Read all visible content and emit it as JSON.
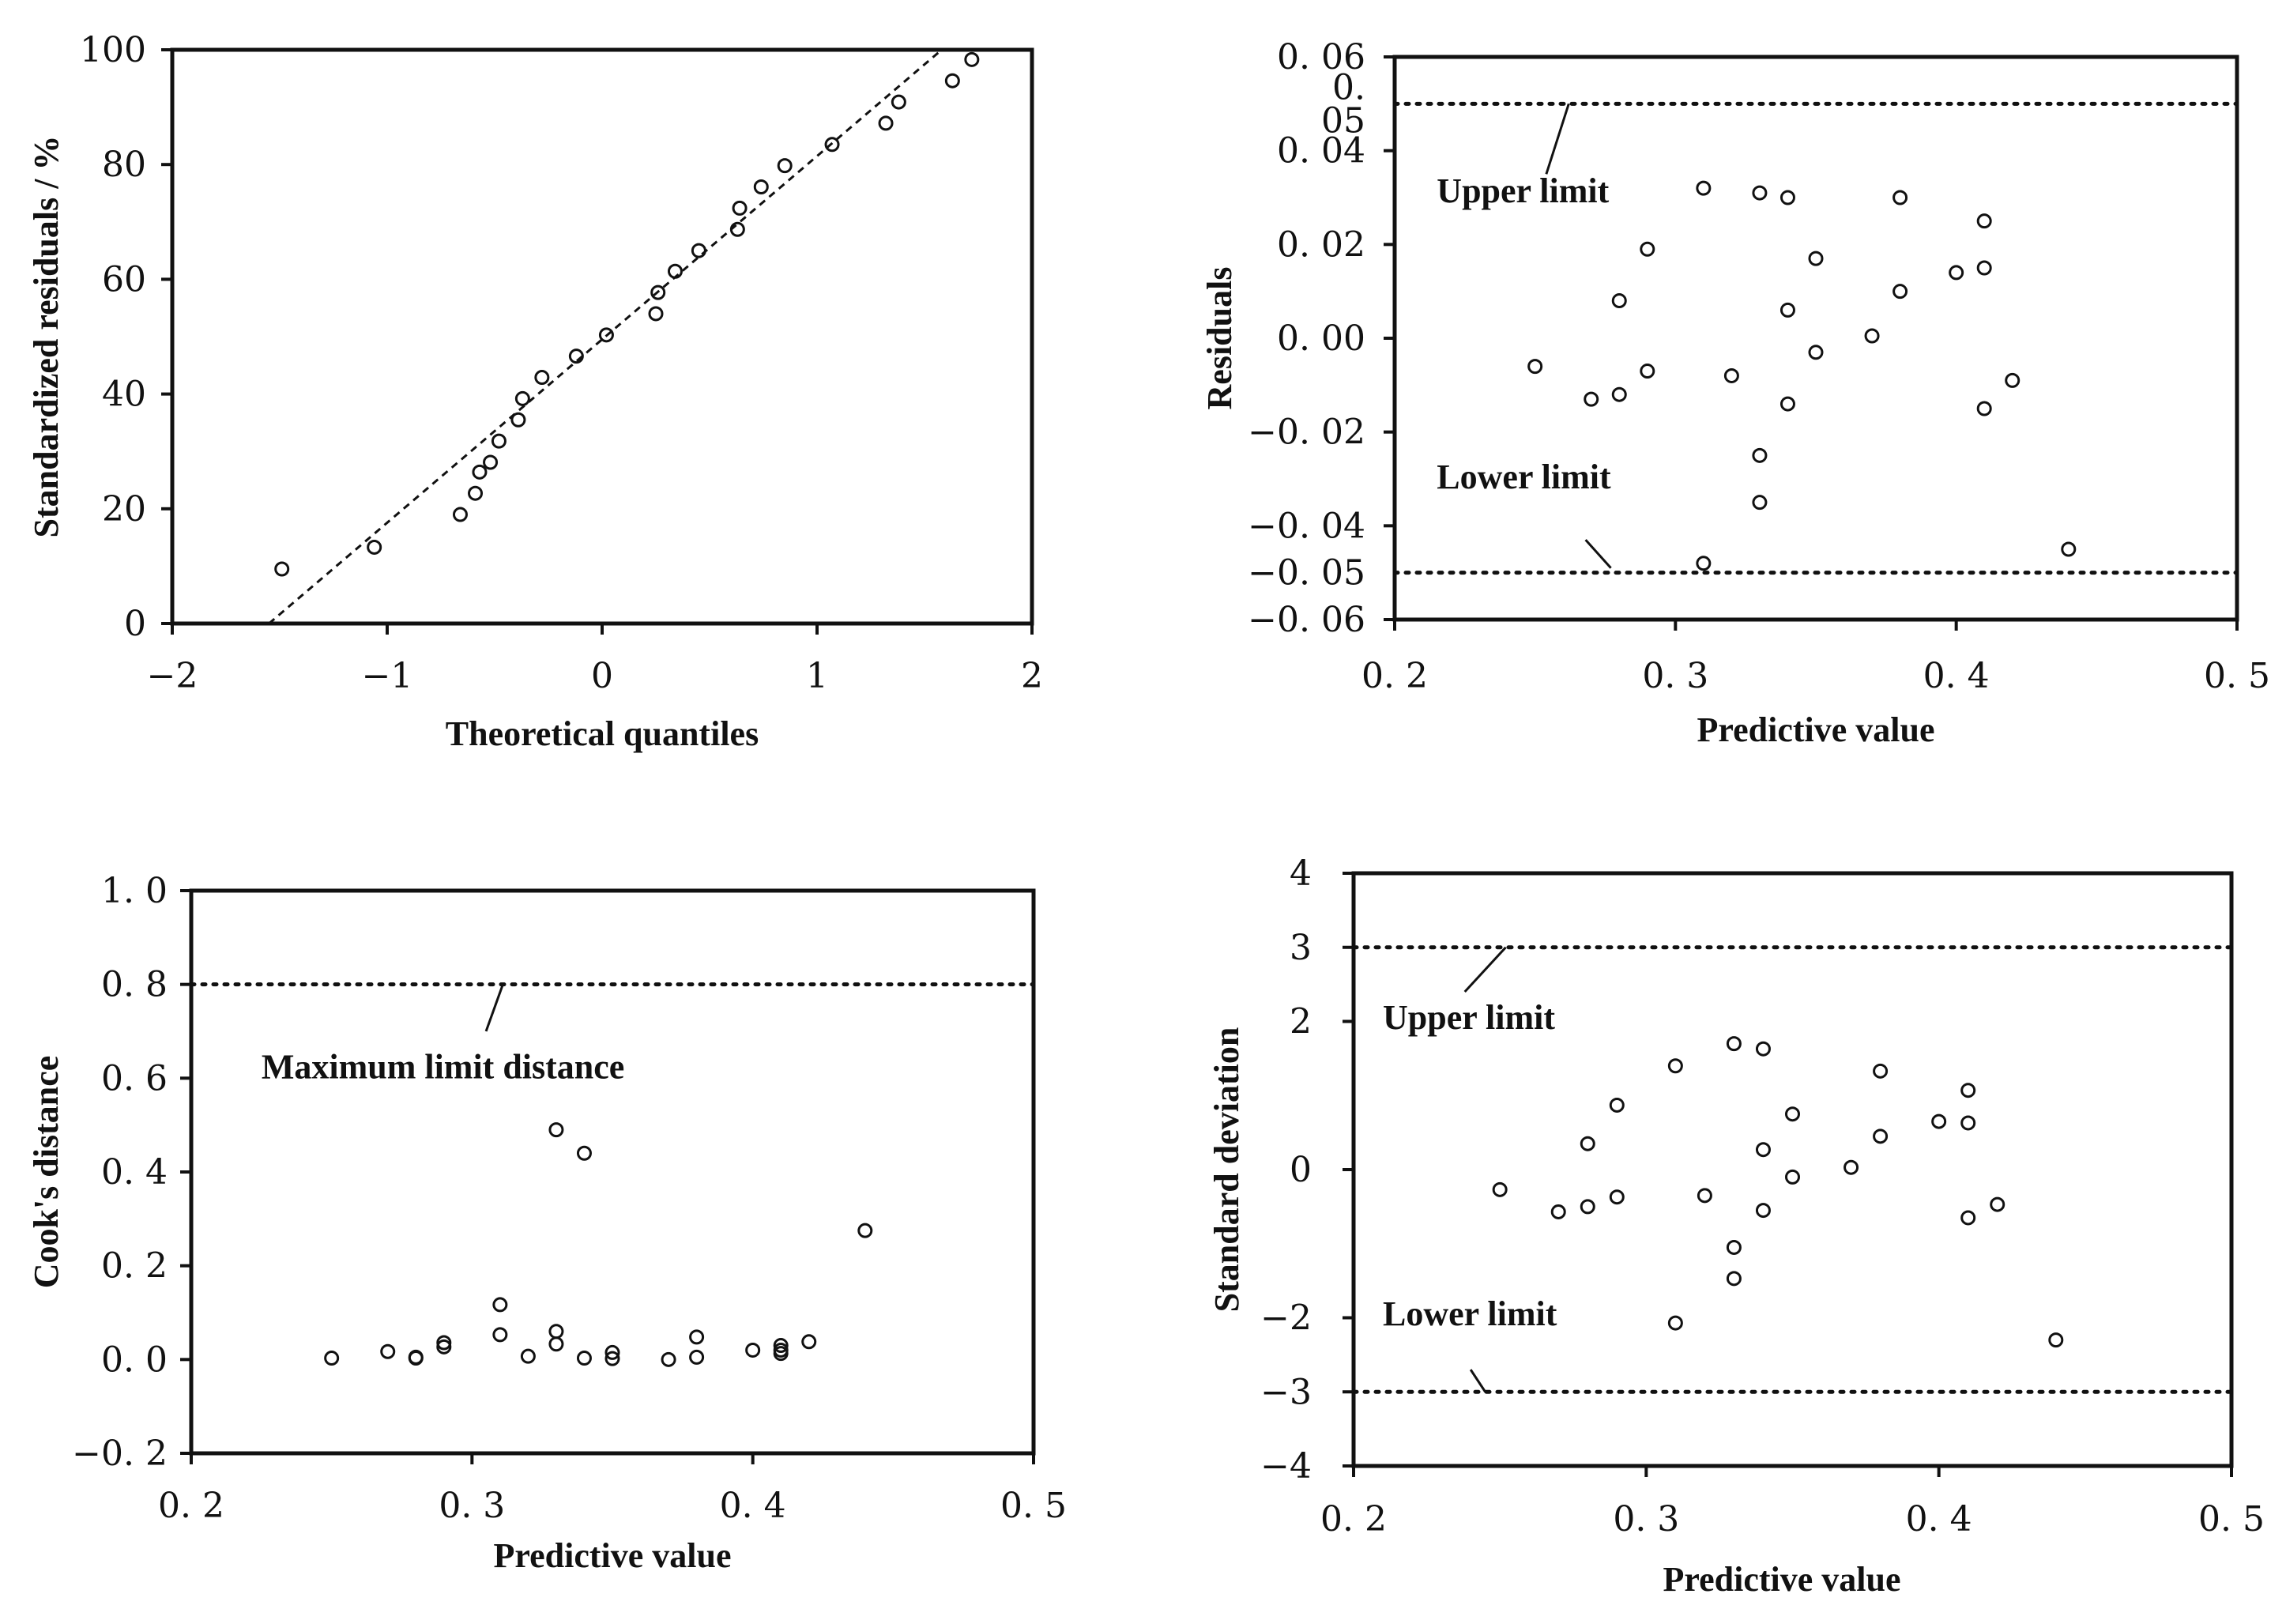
{
  "chart_data": [
    {
      "id": "qq",
      "type": "scatter",
      "xlabel": "Theoretical quantiles",
      "ylabel": "Standardized residuals / %",
      "xlim": [
        -2,
        2
      ],
      "ylim": [
        0,
        100
      ],
      "xticks": [
        -2,
        -1,
        0,
        1,
        2
      ],
      "xtick_labels": [
        "−2",
        "−1",
        "0",
        "1",
        "2"
      ],
      "yticks": [
        0,
        20,
        40,
        60,
        80,
        100
      ],
      "ytick_labels": [
        "0",
        "20",
        "40",
        "60",
        "80",
        "100"
      ],
      "points": [
        [
          -1.49,
          9.5
        ],
        [
          -1.06,
          13.3
        ],
        [
          -0.66,
          19.0
        ],
        [
          -0.59,
          22.7
        ],
        [
          -0.57,
          26.4
        ],
        [
          -0.52,
          28.1
        ],
        [
          -0.48,
          31.8
        ],
        [
          -0.39,
          35.5
        ],
        [
          -0.37,
          39.2
        ],
        [
          -0.28,
          42.9
        ],
        [
          -0.12,
          46.6
        ],
        [
          0.02,
          50.3
        ],
        [
          0.25,
          54.0
        ],
        [
          0.26,
          57.7
        ],
        [
          0.34,
          61.4
        ],
        [
          0.45,
          65.0
        ],
        [
          0.63,
          68.7
        ],
        [
          0.64,
          72.4
        ],
        [
          0.74,
          76.1
        ],
        [
          0.85,
          79.8
        ],
        [
          1.07,
          83.5
        ],
        [
          1.32,
          87.2
        ],
        [
          1.38,
          90.9
        ],
        [
          1.63,
          94.6
        ],
        [
          1.72,
          98.3
        ]
      ],
      "ref_line": [
        [
          -1.55,
          0
        ],
        [
          1.58,
          100
        ]
      ],
      "annotations": []
    },
    {
      "id": "residuals",
      "type": "scatter",
      "xlabel": "Predictive value",
      "ylabel": "Residuals",
      "xlim": [
        0.2,
        0.5
      ],
      "ylim": [
        -0.06,
        0.06
      ],
      "xticks": [
        0.2,
        0.3,
        0.4,
        0.5
      ],
      "xtick_labels": [
        "0. 2",
        "0. 3",
        "0. 4",
        "0. 5"
      ],
      "yticks": [
        0.06,
        0.04,
        0.02,
        0.0,
        -0.02,
        -0.04,
        -0.06
      ],
      "ytick_labels": [
        "0. 06",
        "0. 04",
        "0. 02",
        "0. 00",
        "−0. 02",
        "−0. 04",
        "−0. 06"
      ],
      "extra_ytick_labels": [
        {
          "y": 0.05,
          "label": "0.\n05"
        },
        {
          "y": -0.05,
          "label": "−0. 05"
        }
      ],
      "points": [
        [
          0.25,
          -0.006
        ],
        [
          0.27,
          -0.013
        ],
        [
          0.28,
          0.008
        ],
        [
          0.28,
          -0.012
        ],
        [
          0.29,
          0.019
        ],
        [
          0.29,
          -0.007
        ],
        [
          0.31,
          0.032
        ],
        [
          0.31,
          -0.048
        ],
        [
          0.32,
          -0.008
        ],
        [
          0.33,
          0.031
        ],
        [
          0.33,
          -0.025
        ],
        [
          0.33,
          -0.035
        ],
        [
          0.34,
          0.03
        ],
        [
          0.34,
          0.006
        ],
        [
          0.34,
          -0.014
        ],
        [
          0.35,
          0.017
        ],
        [
          0.35,
          -0.003
        ],
        [
          0.37,
          0.0005
        ],
        [
          0.38,
          0.03
        ],
        [
          0.38,
          0.01
        ],
        [
          0.4,
          0.014
        ],
        [
          0.41,
          0.025
        ],
        [
          0.41,
          0.015
        ],
        [
          0.41,
          -0.015
        ],
        [
          0.42,
          -0.009
        ],
        [
          0.44,
          -0.045
        ]
      ],
      "hlines": [
        0.05,
        -0.05
      ],
      "annotations": [
        {
          "text": "Upper limit",
          "label_at": [
            0.215,
            0.029
          ],
          "line_from": [
            0.254,
            0.035
          ],
          "line_to": [
            0.262,
            0.05
          ]
        },
        {
          "text": "Lower limit",
          "label_at": [
            0.215,
            -0.032
          ],
          "line_from": [
            0.268,
            -0.043
          ],
          "line_to": [
            0.277,
            -0.049
          ]
        }
      ]
    },
    {
      "id": "cooks",
      "type": "scatter",
      "xlabel": "Predictive value",
      "ylabel": "Cook's distance",
      "xlim": [
        0.2,
        0.5
      ],
      "ylim": [
        -0.2,
        1.0
      ],
      "xticks": [
        0.2,
        0.3,
        0.4,
        0.5
      ],
      "xtick_labels": [
        "0. 2",
        "0. 3",
        "0. 4",
        "0. 5"
      ],
      "yticks": [
        1.0,
        0.8,
        0.6,
        0.4,
        0.2,
        0.0,
        -0.2
      ],
      "ytick_labels": [
        "1. 0",
        "0. 8",
        "0. 6",
        "0. 4",
        "0. 2",
        "0. 0",
        "−0. 2"
      ],
      "points": [
        [
          0.25,
          0.003
        ],
        [
          0.27,
          0.017
        ],
        [
          0.28,
          0.005
        ],
        [
          0.28,
          0.003
        ],
        [
          0.29,
          0.036
        ],
        [
          0.29,
          0.027
        ],
        [
          0.31,
          0.117
        ],
        [
          0.31,
          0.053
        ],
        [
          0.32,
          0.007
        ],
        [
          0.33,
          0.49
        ],
        [
          0.33,
          0.06
        ],
        [
          0.33,
          0.033
        ],
        [
          0.34,
          0.44
        ],
        [
          0.34,
          0.003
        ],
        [
          0.35,
          0.015
        ],
        [
          0.35,
          0.002
        ],
        [
          0.37,
          0.0
        ],
        [
          0.38,
          0.048
        ],
        [
          0.38,
          0.005
        ],
        [
          0.4,
          0.02
        ],
        [
          0.41,
          0.03
        ],
        [
          0.41,
          0.02
        ],
        [
          0.41,
          0.013
        ],
        [
          0.42,
          0.038
        ],
        [
          0.44,
          0.275
        ]
      ],
      "hlines": [
        0.8
      ],
      "annotations": [
        {
          "text": "Maximum limit distance",
          "label_at": [
            0.225,
            0.6
          ],
          "line_from": [
            0.305,
            0.7
          ],
          "line_to": [
            0.311,
            0.8
          ]
        }
      ]
    },
    {
      "id": "stddev",
      "type": "scatter",
      "xlabel": "Predictive value",
      "ylabel": "Standard deviation",
      "xlim": [
        0.2,
        0.5
      ],
      "ylim": [
        -4,
        4
      ],
      "xticks": [
        0.2,
        0.3,
        0.4,
        0.5
      ],
      "xtick_labels": [
        "0. 2",
        "0. 3",
        "0. 4",
        "0. 5"
      ],
      "yticks": [
        4,
        3,
        2,
        0,
        -2,
        -3,
        -4
      ],
      "ytick_labels": [
        "4",
        "3",
        "2",
        "0",
        "−2",
        "−3",
        "−4"
      ],
      "points": [
        [
          0.25,
          -0.27
        ],
        [
          0.27,
          -0.57
        ],
        [
          0.28,
          0.35
        ],
        [
          0.28,
          -0.5
        ],
        [
          0.29,
          0.87
        ],
        [
          0.29,
          -0.37
        ],
        [
          0.31,
          1.4
        ],
        [
          0.31,
          -2.07
        ],
        [
          0.32,
          -0.35
        ],
        [
          0.33,
          1.7
        ],
        [
          0.33,
          -1.05
        ],
        [
          0.33,
          -1.47
        ],
        [
          0.34,
          1.63
        ],
        [
          0.34,
          0.27
        ],
        [
          0.34,
          -0.55
        ],
        [
          0.35,
          0.75
        ],
        [
          0.35,
          -0.1
        ],
        [
          0.37,
          0.03
        ],
        [
          0.38,
          1.33
        ],
        [
          0.38,
          0.45
        ],
        [
          0.4,
          0.65
        ],
        [
          0.41,
          1.07
        ],
        [
          0.41,
          0.63
        ],
        [
          0.41,
          -0.65
        ],
        [
          0.42,
          -0.47
        ],
        [
          0.44,
          -2.3
        ]
      ],
      "hlines": [
        3,
        -3
      ],
      "annotations": [
        {
          "text": "Upper limit",
          "label_at": [
            0.21,
            1.9
          ],
          "line_from": [
            0.238,
            2.4
          ],
          "line_to": [
            0.252,
            3.0
          ]
        },
        {
          "text": "Lower limit",
          "label_at": [
            0.21,
            -2.1
          ],
          "line_from": [
            0.24,
            -2.7
          ],
          "line_to": [
            0.245,
            -3.0
          ]
        }
      ]
    }
  ]
}
